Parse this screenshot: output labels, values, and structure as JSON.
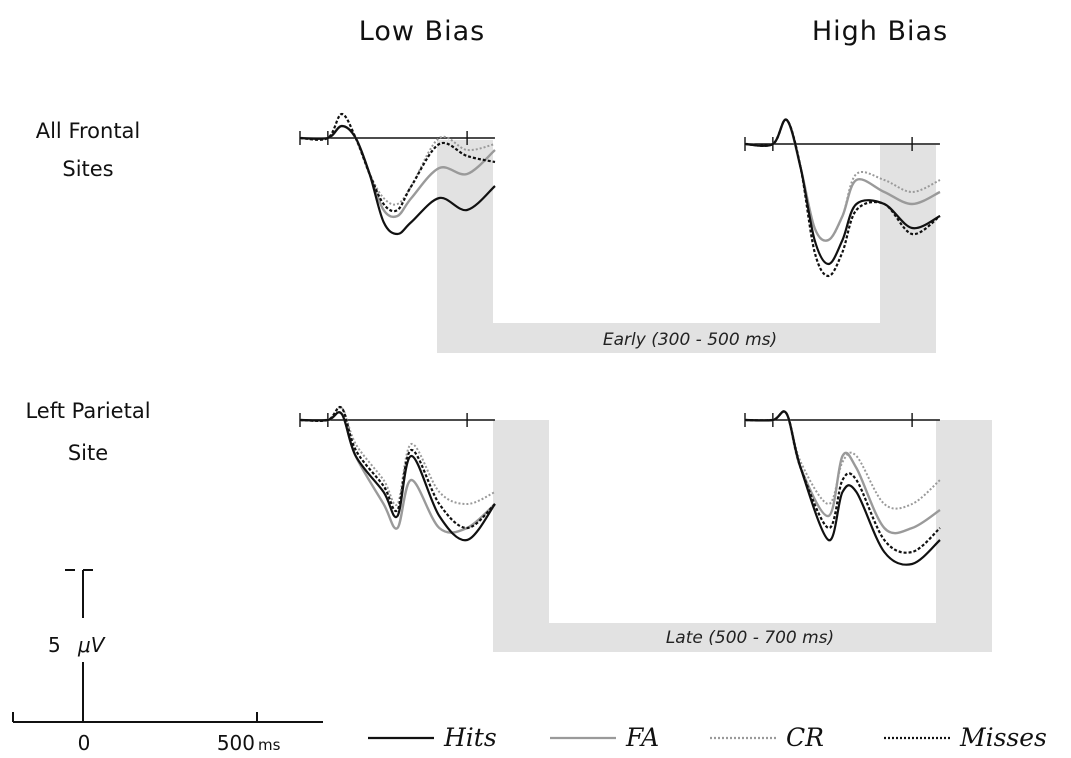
{
  "column_titles": {
    "left": "Low Bias",
    "right": "High Bias"
  },
  "row_labels": {
    "top": {
      "line1": "All Frontal",
      "line2": "Sites"
    },
    "bottom": {
      "line1": "Left Parietal",
      "line2": "Site"
    }
  },
  "time_windows": {
    "early": "Early (300 - 500 ms)",
    "late": "Late (500 - 700 ms)"
  },
  "scale_bar": {
    "amplitude_label": "5",
    "amplitude_unit": "μV",
    "time_zero": "0",
    "time_500": "500",
    "time_unit": "ms"
  },
  "legend": [
    {
      "label": "Hits",
      "color": "#111111",
      "dash": "solid"
    },
    {
      "label": "FA",
      "color": "#9a9a9a",
      "dash": "solid"
    },
    {
      "label": "CR",
      "color": "#9a9a9a",
      "dash": "dotted"
    },
    {
      "label": "Misses",
      "color": "#111111",
      "dash": "dotted"
    }
  ],
  "chart_data": {
    "type": "line",
    "x_unit": "ms",
    "y_unit": "μV",
    "x_range": [
      -100,
      900
    ],
    "amplitude_scale_uv": 5,
    "highlight_windows_ms": {
      "early": [
        300,
        500
      ],
      "late": [
        500,
        700
      ]
    },
    "panels": [
      {
        "condition": "Low Bias",
        "site": "All Frontal Sites",
        "window": "early",
        "series": {
          "Hits": [
            [
              -100,
              0
            ],
            [
              0,
              0
            ],
            [
              50,
              1
            ],
            [
              100,
              0
            ],
            [
              150,
              -3
            ],
            [
              200,
              -7
            ],
            [
              250,
              -8
            ],
            [
              300,
              -7
            ],
            [
              400,
              -5
            ],
            [
              500,
              -6
            ],
            [
              600,
              -4
            ]
          ],
          "FA": [
            [
              -100,
              0
            ],
            [
              0,
              0
            ],
            [
              50,
              1
            ],
            [
              100,
              0
            ],
            [
              150,
              -3
            ],
            [
              200,
              -6
            ],
            [
              250,
              -6.5
            ],
            [
              300,
              -5
            ],
            [
              400,
              -2.5
            ],
            [
              500,
              -3
            ],
            [
              600,
              -1
            ]
          ],
          "CR": [
            [
              -100,
              0
            ],
            [
              0,
              0
            ],
            [
              50,
              1
            ],
            [
              100,
              0
            ],
            [
              150,
              -3
            ],
            [
              200,
              -5
            ],
            [
              250,
              -5.5
            ],
            [
              300,
              -4
            ],
            [
              400,
              0
            ],
            [
              500,
              -1
            ],
            [
              600,
              -0.5
            ]
          ],
          "Misses": [
            [
              -100,
              0
            ],
            [
              0,
              0
            ],
            [
              50,
              2
            ],
            [
              100,
              0
            ],
            [
              150,
              -3
            ],
            [
              200,
              -5.5
            ],
            [
              250,
              -6
            ],
            [
              300,
              -4
            ],
            [
              400,
              -0.5
            ],
            [
              500,
              -1.5
            ],
            [
              600,
              -2
            ]
          ]
        }
      },
      {
        "condition": "High Bias",
        "site": "All Frontal Sites",
        "window": "early",
        "series": {
          "Hits": [
            [
              -100,
              0
            ],
            [
              0,
              0
            ],
            [
              50,
              2
            ],
            [
              100,
              -2
            ],
            [
              150,
              -8
            ],
            [
              200,
              -10
            ],
            [
              250,
              -8
            ],
            [
              300,
              -5
            ],
            [
              400,
              -5
            ],
            [
              500,
              -7
            ],
            [
              600,
              -6
            ]
          ],
          "FA": [
            [
              -100,
              0
            ],
            [
              0,
              0
            ],
            [
              50,
              2
            ],
            [
              100,
              -2
            ],
            [
              150,
              -7
            ],
            [
              200,
              -8
            ],
            [
              250,
              -6
            ],
            [
              300,
              -3
            ],
            [
              400,
              -4
            ],
            [
              500,
              -5
            ],
            [
              600,
              -4
            ]
          ],
          "CR": [
            [
              -100,
              0
            ],
            [
              0,
              0
            ],
            [
              50,
              2
            ],
            [
              100,
              -2
            ],
            [
              150,
              -7
            ],
            [
              200,
              -8
            ],
            [
              250,
              -6
            ],
            [
              300,
              -2.5
            ],
            [
              400,
              -3
            ],
            [
              500,
              -4
            ],
            [
              600,
              -3
            ]
          ],
          "Misses": [
            [
              -100,
              0
            ],
            [
              0,
              0
            ],
            [
              50,
              2
            ],
            [
              100,
              -2
            ],
            [
              150,
              -9
            ],
            [
              200,
              -11
            ],
            [
              250,
              -9
            ],
            [
              300,
              -5.5
            ],
            [
              400,
              -5
            ],
            [
              500,
              -7.5
            ],
            [
              600,
              -6
            ]
          ]
        }
      },
      {
        "condition": "Low Bias",
        "site": "Left Parietal Site",
        "window": "late",
        "series": {
          "Hits": [
            [
              -100,
              0
            ],
            [
              0,
              0
            ],
            [
              50,
              0.5
            ],
            [
              100,
              -3
            ],
            [
              200,
              -6
            ],
            [
              250,
              -8
            ],
            [
              300,
              -3
            ],
            [
              400,
              -8
            ],
            [
              500,
              -10
            ],
            [
              600,
              -7
            ]
          ],
          "FA": [
            [
              -100,
              0
            ],
            [
              0,
              0
            ],
            [
              50,
              0.5
            ],
            [
              100,
              -3
            ],
            [
              200,
              -7
            ],
            [
              250,
              -9
            ],
            [
              300,
              -5
            ],
            [
              400,
              -9
            ],
            [
              500,
              -9
            ],
            [
              600,
              -7
            ]
          ],
          "CR": [
            [
              -100,
              0
            ],
            [
              0,
              0
            ],
            [
              50,
              1
            ],
            [
              100,
              -2
            ],
            [
              200,
              -5
            ],
            [
              250,
              -7
            ],
            [
              300,
              -2
            ],
            [
              400,
              -6
            ],
            [
              500,
              -7
            ],
            [
              600,
              -6
            ]
          ],
          "Misses": [
            [
              -100,
              0
            ],
            [
              0,
              0
            ],
            [
              50,
              1
            ],
            [
              100,
              -2.5
            ],
            [
              200,
              -5.5
            ],
            [
              250,
              -7.5
            ],
            [
              300,
              -2.5
            ],
            [
              400,
              -7
            ],
            [
              500,
              -9
            ],
            [
              600,
              -7
            ]
          ]
        }
      },
      {
        "condition": "High Bias",
        "site": "Left Parietal Site",
        "window": "late",
        "series": {
          "Hits": [
            [
              -100,
              0
            ],
            [
              0,
              0
            ],
            [
              50,
              0.5
            ],
            [
              100,
              -4
            ],
            [
              200,
              -10
            ],
            [
              250,
              -6
            ],
            [
              300,
              -6
            ],
            [
              400,
              -11
            ],
            [
              500,
              -12
            ],
            [
              600,
              -10
            ]
          ],
          "FA": [
            [
              -100,
              0
            ],
            [
              0,
              0
            ],
            [
              50,
              0.5
            ],
            [
              100,
              -4
            ],
            [
              200,
              -8
            ],
            [
              250,
              -3
            ],
            [
              300,
              -4
            ],
            [
              400,
              -9
            ],
            [
              500,
              -9
            ],
            [
              600,
              -7.5
            ]
          ],
          "CR": [
            [
              -100,
              0
            ],
            [
              0,
              0
            ],
            [
              50,
              0.5
            ],
            [
              100,
              -3.5
            ],
            [
              200,
              -7
            ],
            [
              250,
              -3.5
            ],
            [
              300,
              -3
            ],
            [
              400,
              -7
            ],
            [
              500,
              -7
            ],
            [
              600,
              -5
            ]
          ],
          "Misses": [
            [
              -100,
              0
            ],
            [
              0,
              0
            ],
            [
              50,
              0.5
            ],
            [
              100,
              -4
            ],
            [
              200,
              -9
            ],
            [
              250,
              -5
            ],
            [
              300,
              -5
            ],
            [
              400,
              -10
            ],
            [
              500,
              -11
            ],
            [
              600,
              -9
            ]
          ]
        }
      }
    ]
  }
}
